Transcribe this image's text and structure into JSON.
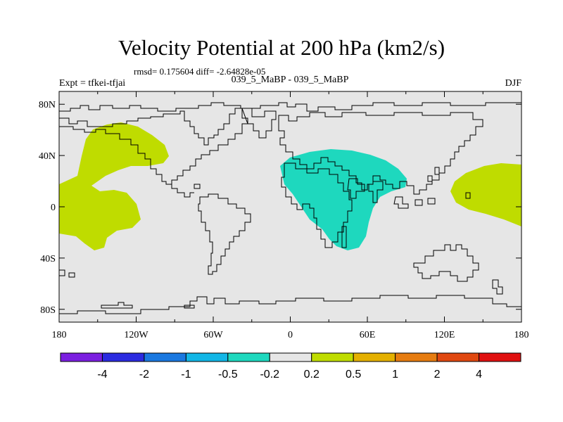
{
  "title": "Velocity Potential at 200 hPa (km2/s)",
  "stats": "rmsd= 0.175604 diff= -2.64828e-05",
  "experiment": "Expt = tfkei-tfjai",
  "comparison": "039_5_MaBP - 039_5_MaBP",
  "season": "DJF",
  "map": {
    "background_color": "#e6e6e6",
    "lon_range": [
      -180,
      180
    ],
    "lat_range": [
      -90,
      90
    ],
    "lat_ticks": [
      {
        "value": 80,
        "label": "80N"
      },
      {
        "value": 40,
        "label": "40N"
      },
      {
        "value": 0,
        "label": "0"
      },
      {
        "value": -40,
        "label": "40S"
      },
      {
        "value": -80,
        "label": "80S"
      }
    ],
    "lon_ticks": [
      {
        "value": -180,
        "label": "180"
      },
      {
        "value": -120,
        "label": "120W"
      },
      {
        "value": -60,
        "label": "60W"
      },
      {
        "value": 0,
        "label": "0"
      },
      {
        "value": 60,
        "label": "60E"
      },
      {
        "value": 120,
        "label": "120E"
      },
      {
        "value": 180,
        "label": "180"
      }
    ],
    "regions": [
      {
        "name": "pacific-positive",
        "level": "0.2 to 0.5",
        "color": "#bfdc00"
      },
      {
        "name": "east-pacific-positive",
        "level": "0.2 to 0.5",
        "color": "#bfdc00"
      },
      {
        "name": "africa-negative",
        "level": "-0.5 to -0.2",
        "color": "#1ed8be"
      }
    ]
  },
  "colorbar": {
    "colors": [
      "#7b1fe0",
      "#2b2be0",
      "#1a78e0",
      "#12b6e6",
      "#1ed8be",
      "#e6e6e6",
      "#bfdc00",
      "#e4b000",
      "#e67c10",
      "#e04810",
      "#e01010"
    ],
    "labels": [
      "-4",
      "-2",
      "-1",
      "-0.5",
      "-0.2",
      "0.2",
      "0.5",
      "1",
      "2",
      "4"
    ]
  }
}
